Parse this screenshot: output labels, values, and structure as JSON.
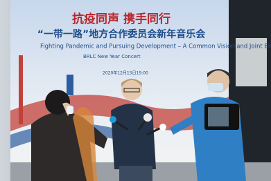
{
  "banner": {
    "title_cn": "抗疫同声 携手同行",
    "subtitle_cn": "“一带一路”地方合作委员会新年音乐会",
    "title_en": "Fighting Pandemic and Pursuing Development – A Common Vision and Joint Endeavour",
    "subtitle_en": "BRLC New Year Concert",
    "date": "2020年12月15日19:00"
  }
}
